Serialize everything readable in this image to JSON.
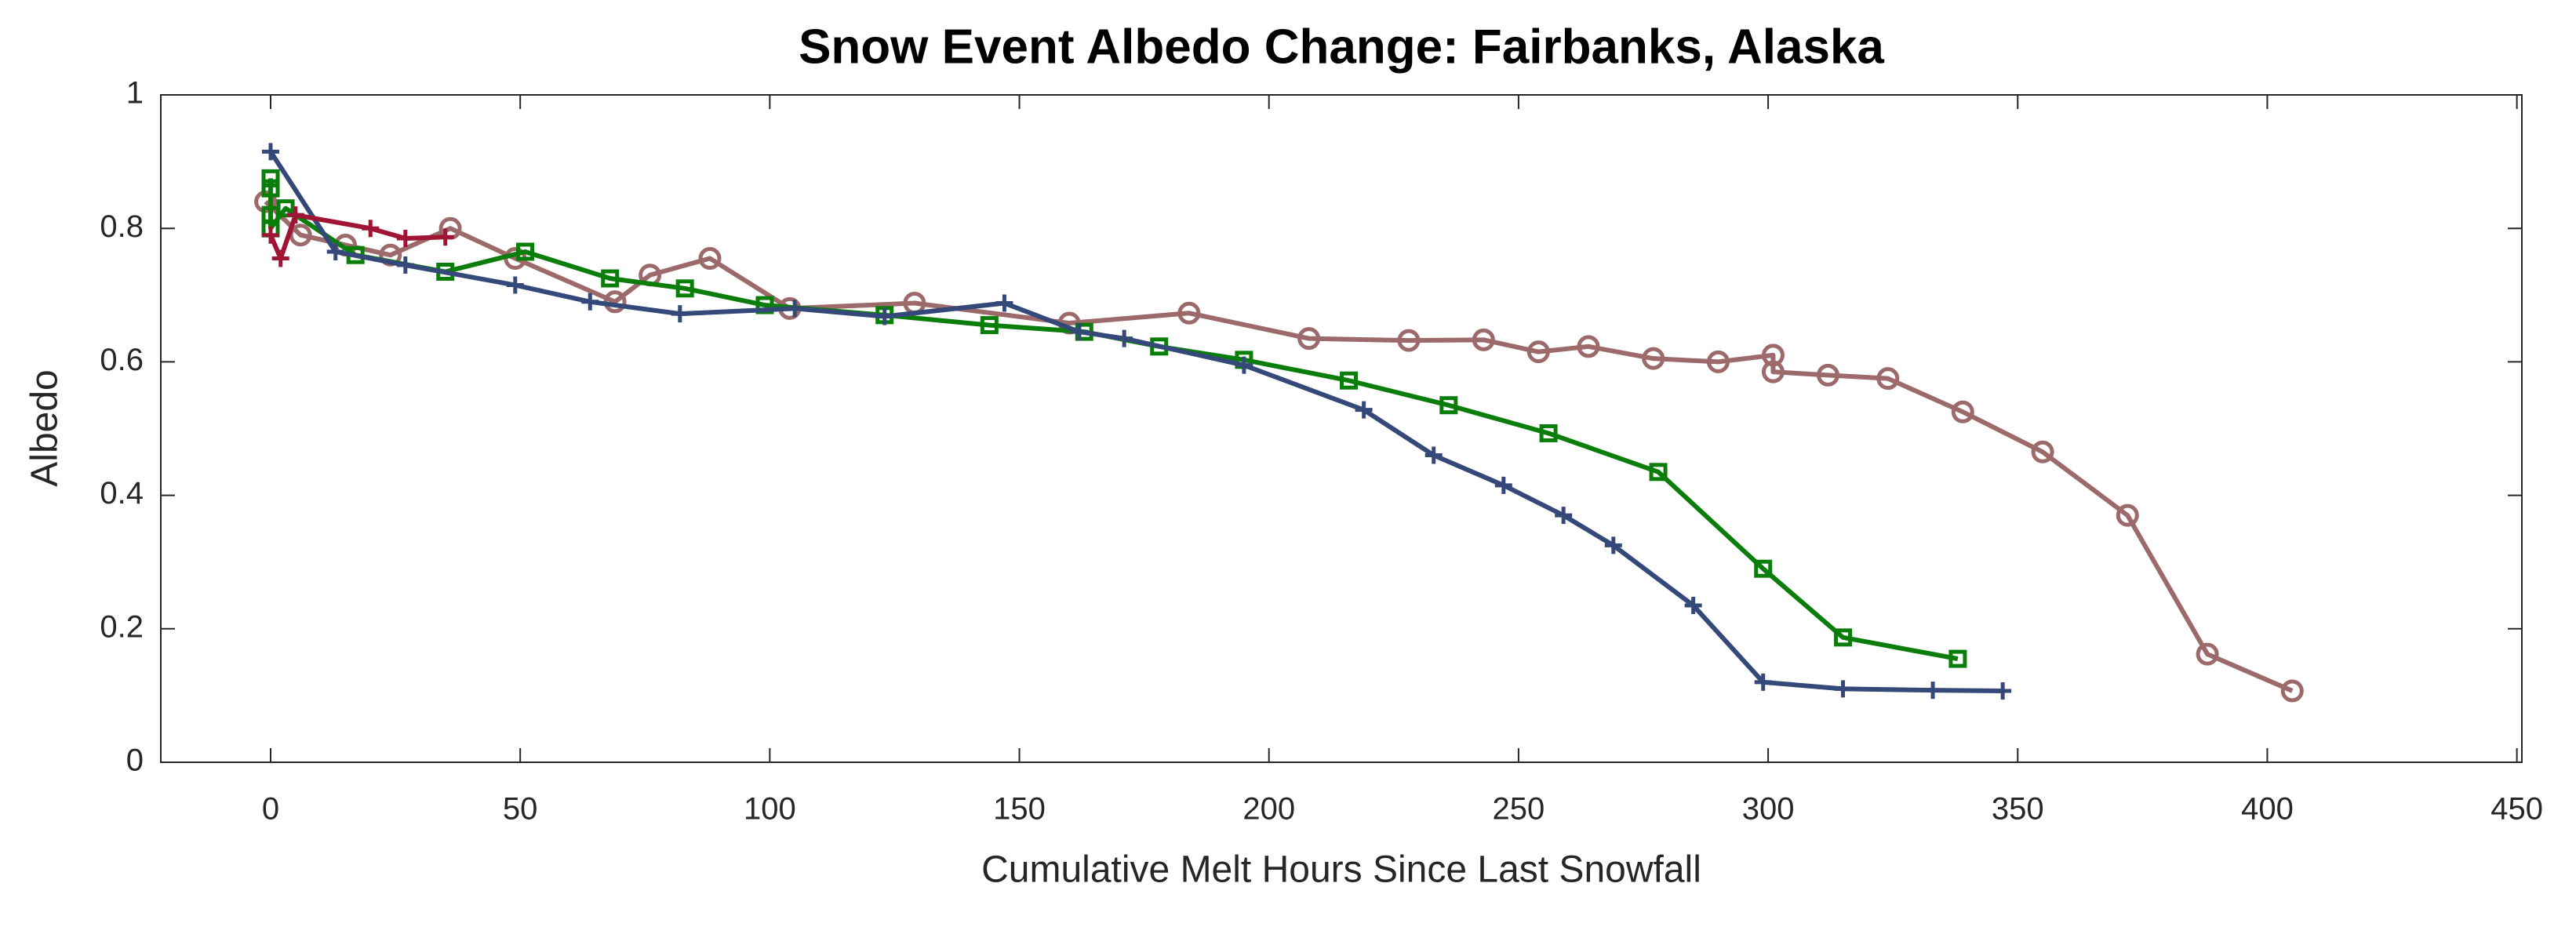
{
  "chart_data": {
    "type": "line",
    "title": "Snow Event Albedo Change: Fairbanks, Alaska",
    "x_label": "Cumulative Melt Hours Since Last Snowfall",
    "y_label": "Albedo",
    "xlim": [
      -22,
      451
    ],
    "xticks": [
      0,
      50,
      100,
      150,
      200,
      250,
      300,
      350,
      400,
      450
    ],
    "ylim": [
      0,
      1
    ],
    "yticks": [
      0,
      0.2,
      0.4,
      0.6,
      0.8,
      1
    ],
    "series": [
      {
        "color": "#9c6a6a",
        "marker": "circle",
        "x": [
          -1,
          6,
          15,
          24,
          36,
          49,
          69,
          76,
          88,
          104,
          129,
          160,
          184,
          208,
          228,
          243,
          254,
          264,
          277,
          290,
          301,
          301,
          312,
          324,
          339,
          355,
          372,
          388,
          405
        ],
        "values": [
          0.84,
          0.79,
          0.775,
          0.76,
          0.8,
          0.755,
          0.69,
          0.73,
          0.755,
          0.68,
          0.688,
          0.658,
          0.673,
          0.635,
          0.632,
          0.633,
          0.615,
          0.623,
          0.605,
          0.6,
          0.61,
          0.585,
          0.58,
          0.575,
          0.525,
          0.465,
          0.37,
          0.162,
          0.107
        ]
      },
      {
        "color": "#0b7d0b",
        "marker": "square",
        "x": [
          0,
          0,
          0,
          0,
          3,
          17,
          35,
          51,
          68,
          83,
          99,
          123,
          144,
          163,
          178,
          195,
          216,
          236,
          256,
          278,
          299,
          315,
          338
        ],
        "values": [
          0.875,
          0.86,
          0.82,
          0.8,
          0.83,
          0.76,
          0.735,
          0.765,
          0.725,
          0.71,
          0.685,
          0.67,
          0.655,
          0.645,
          0.623,
          0.603,
          0.572,
          0.535,
          0.493,
          0.435,
          0.29,
          0.187,
          0.155
        ]
      },
      {
        "color": "#34497a",
        "marker": "plus",
        "x": [
          0,
          13,
          27,
          49,
          64,
          82,
          105,
          123,
          147,
          162,
          171,
          195,
          219,
          233,
          247,
          259,
          269,
          285,
          299,
          315,
          333,
          347
        ],
        "values": [
          0.915,
          0.765,
          0.745,
          0.715,
          0.69,
          0.672,
          0.68,
          0.668,
          0.688,
          0.645,
          0.635,
          0.595,
          0.528,
          0.46,
          0.415,
          0.37,
          0.325,
          0.235,
          0.12,
          0.11,
          0.108,
          0.107
        ]
      },
      {
        "color": "#a01535",
        "marker": "plus",
        "x": [
          0,
          2,
          5,
          20,
          27,
          35
        ],
        "values": [
          0.79,
          0.755,
          0.82,
          0.8,
          0.785,
          0.787
        ]
      }
    ]
  }
}
